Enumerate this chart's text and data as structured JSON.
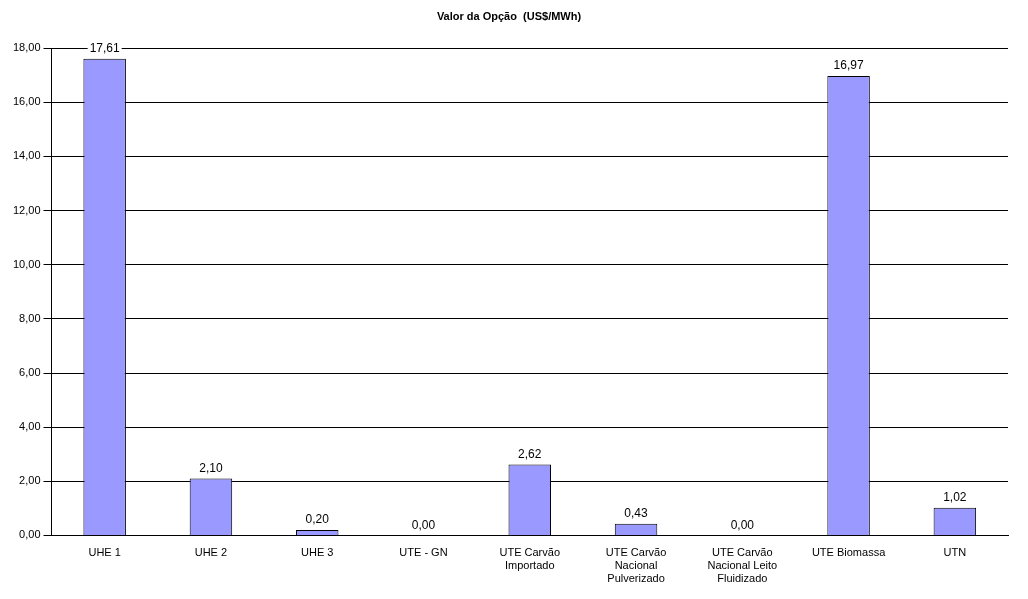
{
  "chart_data": {
    "type": "bar",
    "title": "Valor da Opção  (US$/MWh)",
    "categories": [
      "UHE 1",
      "UHE 2",
      "UHE 3",
      "UTE - GN",
      "UTE Carvão Importado",
      "UTE Carvão Nacional Pulverizado",
      "UTE Carvão Nacional Leito Fluidizado",
      "UTE Biomassa",
      "UTN"
    ],
    "values": [
      17.61,
      2.1,
      0.2,
      0.0,
      2.62,
      0.43,
      0.0,
      16.97,
      1.02
    ],
    "value_labels": [
      "17,61",
      "2,10",
      "0,20",
      "0,00",
      "2,62",
      "0,43",
      "0,00",
      "16,97",
      "1,02"
    ],
    "color": "#9999ff",
    "ylim": [
      0,
      18
    ],
    "yticks": [
      {
        "value": 0,
        "label": "0,00"
      },
      {
        "value": 2,
        "label": "2,00"
      },
      {
        "value": 4,
        "label": "4,00"
      },
      {
        "value": 6,
        "label": "6,00"
      },
      {
        "value": 8,
        "label": "8,00"
      },
      {
        "value": 10,
        "label": "10,00"
      },
      {
        "value": 12,
        "label": "12,00"
      },
      {
        "value": 14,
        "label": "14,00"
      },
      {
        "value": 16,
        "label": "16,00"
      },
      {
        "value": 18,
        "label": "18,00"
      }
    ],
    "grid": "y"
  }
}
